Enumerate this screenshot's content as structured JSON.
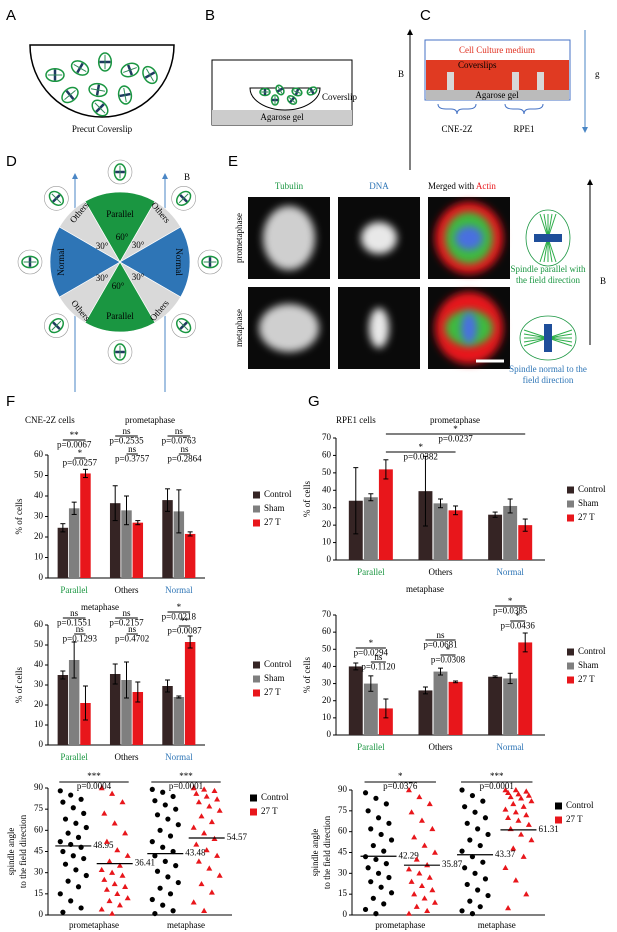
{
  "panels": {
    "A": {
      "label": "A",
      "caption": "Precut Coverslip"
    },
    "B": {
      "label": "B",
      "coverslip": "Coverslip",
      "gel": "Agarose gel"
    },
    "C": {
      "label": "C",
      "field": "B",
      "gravity": "g",
      "medium": "Cell Culture medium",
      "coverslips": "Coverslips",
      "gel": "Agarose gel",
      "lines": [
        "CNE-2Z",
        "RPE1"
      ]
    },
    "D": {
      "label": "D",
      "field": "B",
      "parallel": "Parallel",
      "others": "Others",
      "normal": "Normal",
      "angles": [
        "60°",
        "30°"
      ]
    },
    "E": {
      "label": "E",
      "columns": [
        "Tubulin",
        "DNA"
      ],
      "merged": [
        "Merged with",
        "Actin"
      ],
      "rows": [
        "prometaphase",
        "metaphase"
      ],
      "caption_parallel": [
        "Spindle parallel with",
        "the field direction"
      ],
      "caption_normal": [
        "Spindle normal to the",
        "field direction"
      ],
      "field": "B"
    },
    "F": {
      "label": "F"
    },
    "G": {
      "label": "G"
    }
  },
  "chart_data": [
    {
      "type": "bar",
      "cell_line": "CNE-2Z cells",
      "title": "prometaphase",
      "ylabel": "% of cells",
      "categories": [
        "Parallel",
        "Others",
        "Normal"
      ],
      "category_colors": [
        "#1a9641",
        "#000000",
        "#2e75b6"
      ],
      "ylim": [
        0,
        60
      ],
      "yticks": [
        0,
        10,
        20,
        30,
        40,
        50,
        60
      ],
      "series": [
        {
          "name": "Control",
          "color": "#352424",
          "values": [
            24.5,
            36.5,
            38
          ],
          "errors": [
            2,
            8.5,
            5.5
          ]
        },
        {
          "name": "Sham",
          "color": "#7f7f7f",
          "values": [
            34,
            33,
            32.5
          ],
          "errors": [
            3,
            7,
            10.5
          ]
        },
        {
          "name": "27 T",
          "color": "#e8161b",
          "values": [
            51,
            27,
            21.5
          ],
          "errors": [
            2,
            1,
            1
          ]
        }
      ],
      "comparisons": [
        {
          "stars": "**",
          "p": "p=0.0067"
        },
        {
          "stars": "*",
          "p": "p=0.0257"
        },
        {
          "stars": "ns",
          "p": "p=0.2535"
        },
        {
          "stars": "ns",
          "p": "p=0.3757"
        },
        {
          "stars": "ns",
          "p": "p=0.0763"
        },
        {
          "stars": "ns",
          "p": "p=0.2864"
        }
      ]
    },
    {
      "type": "bar",
      "title": "metaphase",
      "ylabel": "% of cells",
      "categories": [
        "Parallel",
        "Others",
        "Normal"
      ],
      "category_colors": [
        "#1a9641",
        "#000000",
        "#2e75b6"
      ],
      "ylim": [
        0,
        60
      ],
      "yticks": [
        0,
        10,
        20,
        30,
        40,
        50,
        60
      ],
      "series": [
        {
          "name": "Control",
          "color": "#352424",
          "values": [
            35,
            35.5,
            29.5
          ],
          "errors": [
            2,
            5,
            3
          ]
        },
        {
          "name": "Sham",
          "color": "#7f7f7f",
          "values": [
            42.5,
            32.5,
            24
          ],
          "errors": [
            9,
            9,
            0.5
          ]
        },
        {
          "name": "27 T",
          "color": "#e8161b",
          "values": [
            21,
            26.5,
            51.5
          ],
          "errors": [
            8.5,
            5,
            3
          ]
        }
      ],
      "comparisons": [
        {
          "stars": "ns",
          "p": "p=0.1551"
        },
        {
          "stars": "ns",
          "p": "p=0.1293"
        },
        {
          "stars": "ns",
          "p": "p=0.2157"
        },
        {
          "stars": "ns",
          "p": "p=0.4702"
        },
        {
          "stars": "*",
          "p": "p=0.0218"
        },
        {
          "stars": "**",
          "p": "p=0.0087"
        }
      ]
    },
    {
      "type": "scatter",
      "ylabel": [
        "spindle angle",
        "to the field direction"
      ],
      "categories": [
        "prometaphase",
        "metaphase"
      ],
      "ylim": [
        0,
        90
      ],
      "yticks": [
        0,
        15,
        30,
        45,
        60,
        75,
        90
      ],
      "series": [
        {
          "name": "Control",
          "color": "#000000",
          "marker": "circle",
          "values": [
            [
              88,
              85,
              82,
              80,
              76,
              72,
              68,
              65,
              62,
              58,
              55,
              52,
              50,
              48,
              45,
              42,
              40,
              36,
              32,
              28,
              24,
              20,
              15,
              10,
              5,
              2
            ],
            [
              89,
              87,
              84,
              81,
              78,
              75,
              71,
              68,
              64,
              60,
              56,
              52,
              48,
              45,
              42,
              38,
              35,
              31,
              27,
              23,
              19,
              15,
              11,
              7,
              3,
              1
            ]
          ],
          "means": [
            48.95,
            43.48
          ]
        },
        {
          "name": "27 T",
          "color": "#e8161b",
          "marker": "triangle",
          "values": [
            [
              90,
              86,
              80,
              72,
              65,
              58,
              52,
              46,
              42,
              38,
              35,
              32,
              30,
              28,
              25,
              22,
              20,
              18,
              15,
              12,
              10,
              7,
              4,
              1
            ],
            [
              90,
              89,
              88,
              86,
              84,
              82,
              80,
              77,
              74,
              70,
              66,
              62,
              58,
              54,
              50,
              46,
              42,
              38,
              33,
              28,
              22,
              16,
              9,
              3
            ]
          ],
          "means": [
            36.41,
            54.57
          ]
        }
      ],
      "comparisons": [
        {
          "stars": "***",
          "p": "p=0.0004"
        },
        {
          "stars": "***",
          "p": "p=0.0001"
        }
      ]
    },
    {
      "type": "bar",
      "cell_line": "RPE1 cells",
      "title": "prometaphase",
      "ylabel": "% of cells",
      "categories": [
        "Parallel",
        "Others",
        "Normal"
      ],
      "category_colors": [
        "#1a9641",
        "#000000",
        "#2e75b6"
      ],
      "ylim": [
        0,
        70
      ],
      "yticks": [
        0,
        10,
        20,
        30,
        40,
        50,
        60,
        70
      ],
      "series": [
        {
          "name": "Control",
          "color": "#352424",
          "values": [
            34,
            39.5,
            26
          ],
          "errors": [
            19,
            20,
            1.5
          ]
        },
        {
          "name": "Sham",
          "color": "#7f7f7f",
          "values": [
            36,
            32.5,
            31
          ],
          "errors": [
            2,
            2.5,
            4
          ]
        },
        {
          "name": "27 T",
          "color": "#e8161b",
          "values": [
            52,
            28.5,
            20
          ],
          "errors": [
            5.5,
            2.5,
            3.5
          ]
        }
      ],
      "comparisons": [
        {
          "stars": "*",
          "p": "p=0.0382"
        },
        {
          "stars": "*",
          "p": "p=0.0237"
        }
      ]
    },
    {
      "type": "bar",
      "title": "metaphase",
      "ylabel": "% of cells",
      "categories": [
        "Parallel",
        "Others",
        "Normal"
      ],
      "category_colors": [
        "#1a9641",
        "#000000",
        "#2e75b6"
      ],
      "ylim": [
        0,
        70
      ],
      "yticks": [
        0,
        10,
        20,
        30,
        40,
        50,
        60,
        70
      ],
      "series": [
        {
          "name": "Control",
          "color": "#352424",
          "values": [
            40,
            26,
            34
          ],
          "errors": [
            2,
            2,
            0.5
          ]
        },
        {
          "name": "Sham",
          "color": "#7f7f7f",
          "values": [
            30,
            37,
            33
          ],
          "errors": [
            4.5,
            2,
            3
          ]
        },
        {
          "name": "27 T",
          "color": "#e8161b",
          "values": [
            15.5,
            31,
            54
          ],
          "errors": [
            5.5,
            0.5,
            5.5
          ]
        }
      ],
      "comparisons": [
        {
          "stars": "*",
          "p": "p=0.0294"
        },
        {
          "stars": "ns",
          "p": "p=0.1120"
        },
        {
          "stars": "ns",
          "p": "p=0.0681"
        },
        {
          "stars": "*",
          "p": "p=0.0308"
        },
        {
          "stars": "*",
          "p": "p=0.0385"
        },
        {
          "stars": "*",
          "p": "p=0.0436"
        }
      ]
    },
    {
      "type": "scatter",
      "ylabel": [
        "spindle angle",
        "to the field direction"
      ],
      "categories": [
        "prometaphase",
        "metaphase"
      ],
      "ylim": [
        0,
        90
      ],
      "yticks": [
        0,
        15,
        30,
        45,
        60,
        75,
        90
      ],
      "series": [
        {
          "name": "Control",
          "color": "#000000",
          "marker": "circle",
          "values": [
            [
              88,
              84,
              80,
              75,
              70,
              66,
              62,
              58,
              54,
              50,
              46,
              42,
              40,
              37,
              34,
              30,
              27,
              24,
              20,
              16,
              12,
              8,
              4,
              1
            ],
            [
              90,
              86,
              82,
              78,
              74,
              70,
              66,
              62,
              58,
              54,
              50,
              46,
              42,
              38,
              34,
              30,
              26,
              22,
              18,
              14,
              10,
              6,
              3,
              1
            ]
          ],
          "means": [
            42.29,
            43.37
          ]
        },
        {
          "name": "27 T",
          "color": "#e8161b",
          "marker": "triangle",
          "values": [
            [
              90,
              85,
              80,
              74,
              68,
              62,
              56,
              50,
              45,
              40,
              36,
              33,
              30,
              27,
              24,
              21,
              18,
              15,
              12,
              9,
              6,
              3,
              1
            ],
            [
              90,
              90,
              89,
              88,
              87,
              86,
              85,
              84,
              82,
              80,
              78,
              76,
              74,
              72,
              70,
              68,
              65,
              62,
              58,
              54,
              48,
              42,
              34,
              25,
              15,
              5
            ]
          ],
          "means": [
            35.87,
            61.31
          ]
        }
      ],
      "comparisons": [
        {
          "stars": "*",
          "p": "p=0.0376"
        },
        {
          "stars": "***",
          "p": "p=0.0001"
        }
      ]
    }
  ]
}
